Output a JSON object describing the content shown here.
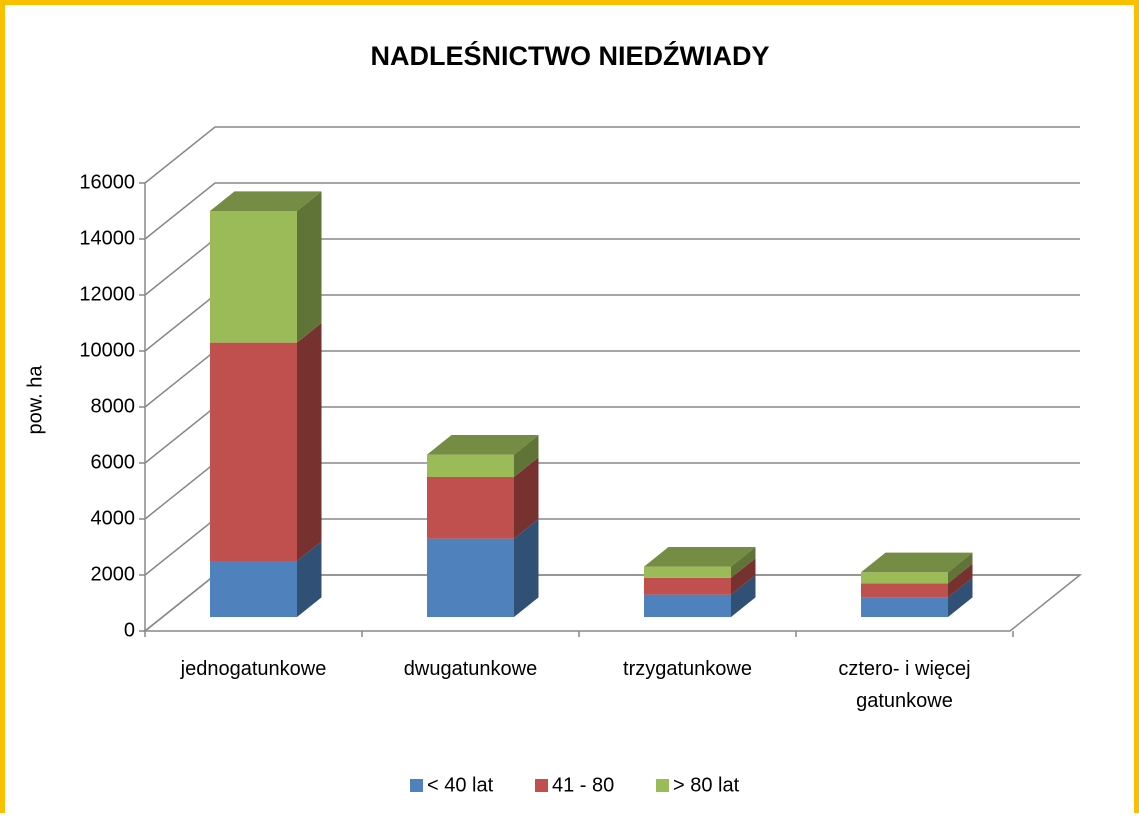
{
  "chart_data": {
    "type": "bar3d_stacked",
    "title": "NADLEŚNICTWO NIEDŹWIADY",
    "y_label": "pow. ha",
    "categories": [
      "jednogatunkowe",
      "dwugatunkowe",
      "trzygatunkowe",
      "cztero- i więcej gatunkowe"
    ],
    "series": [
      {
        "name": "< 40 lat",
        "color": "#4f81bd",
        "values": [
          2000,
          2800,
          800,
          700
        ]
      },
      {
        "name": "41 - 80",
        "color": "#c0504d",
        "values": [
          7800,
          2200,
          600,
          500
        ]
      },
      {
        "name": "> 80 lat",
        "color": "#9bbb59",
        "values": [
          4700,
          800,
          400,
          400
        ]
      }
    ],
    "ylim": [
      0,
      16000
    ],
    "yticks": [
      0,
      2000,
      4000,
      6000,
      8000,
      10000,
      12000,
      14000,
      16000
    ],
    "grid": true,
    "legend": "bottom"
  }
}
